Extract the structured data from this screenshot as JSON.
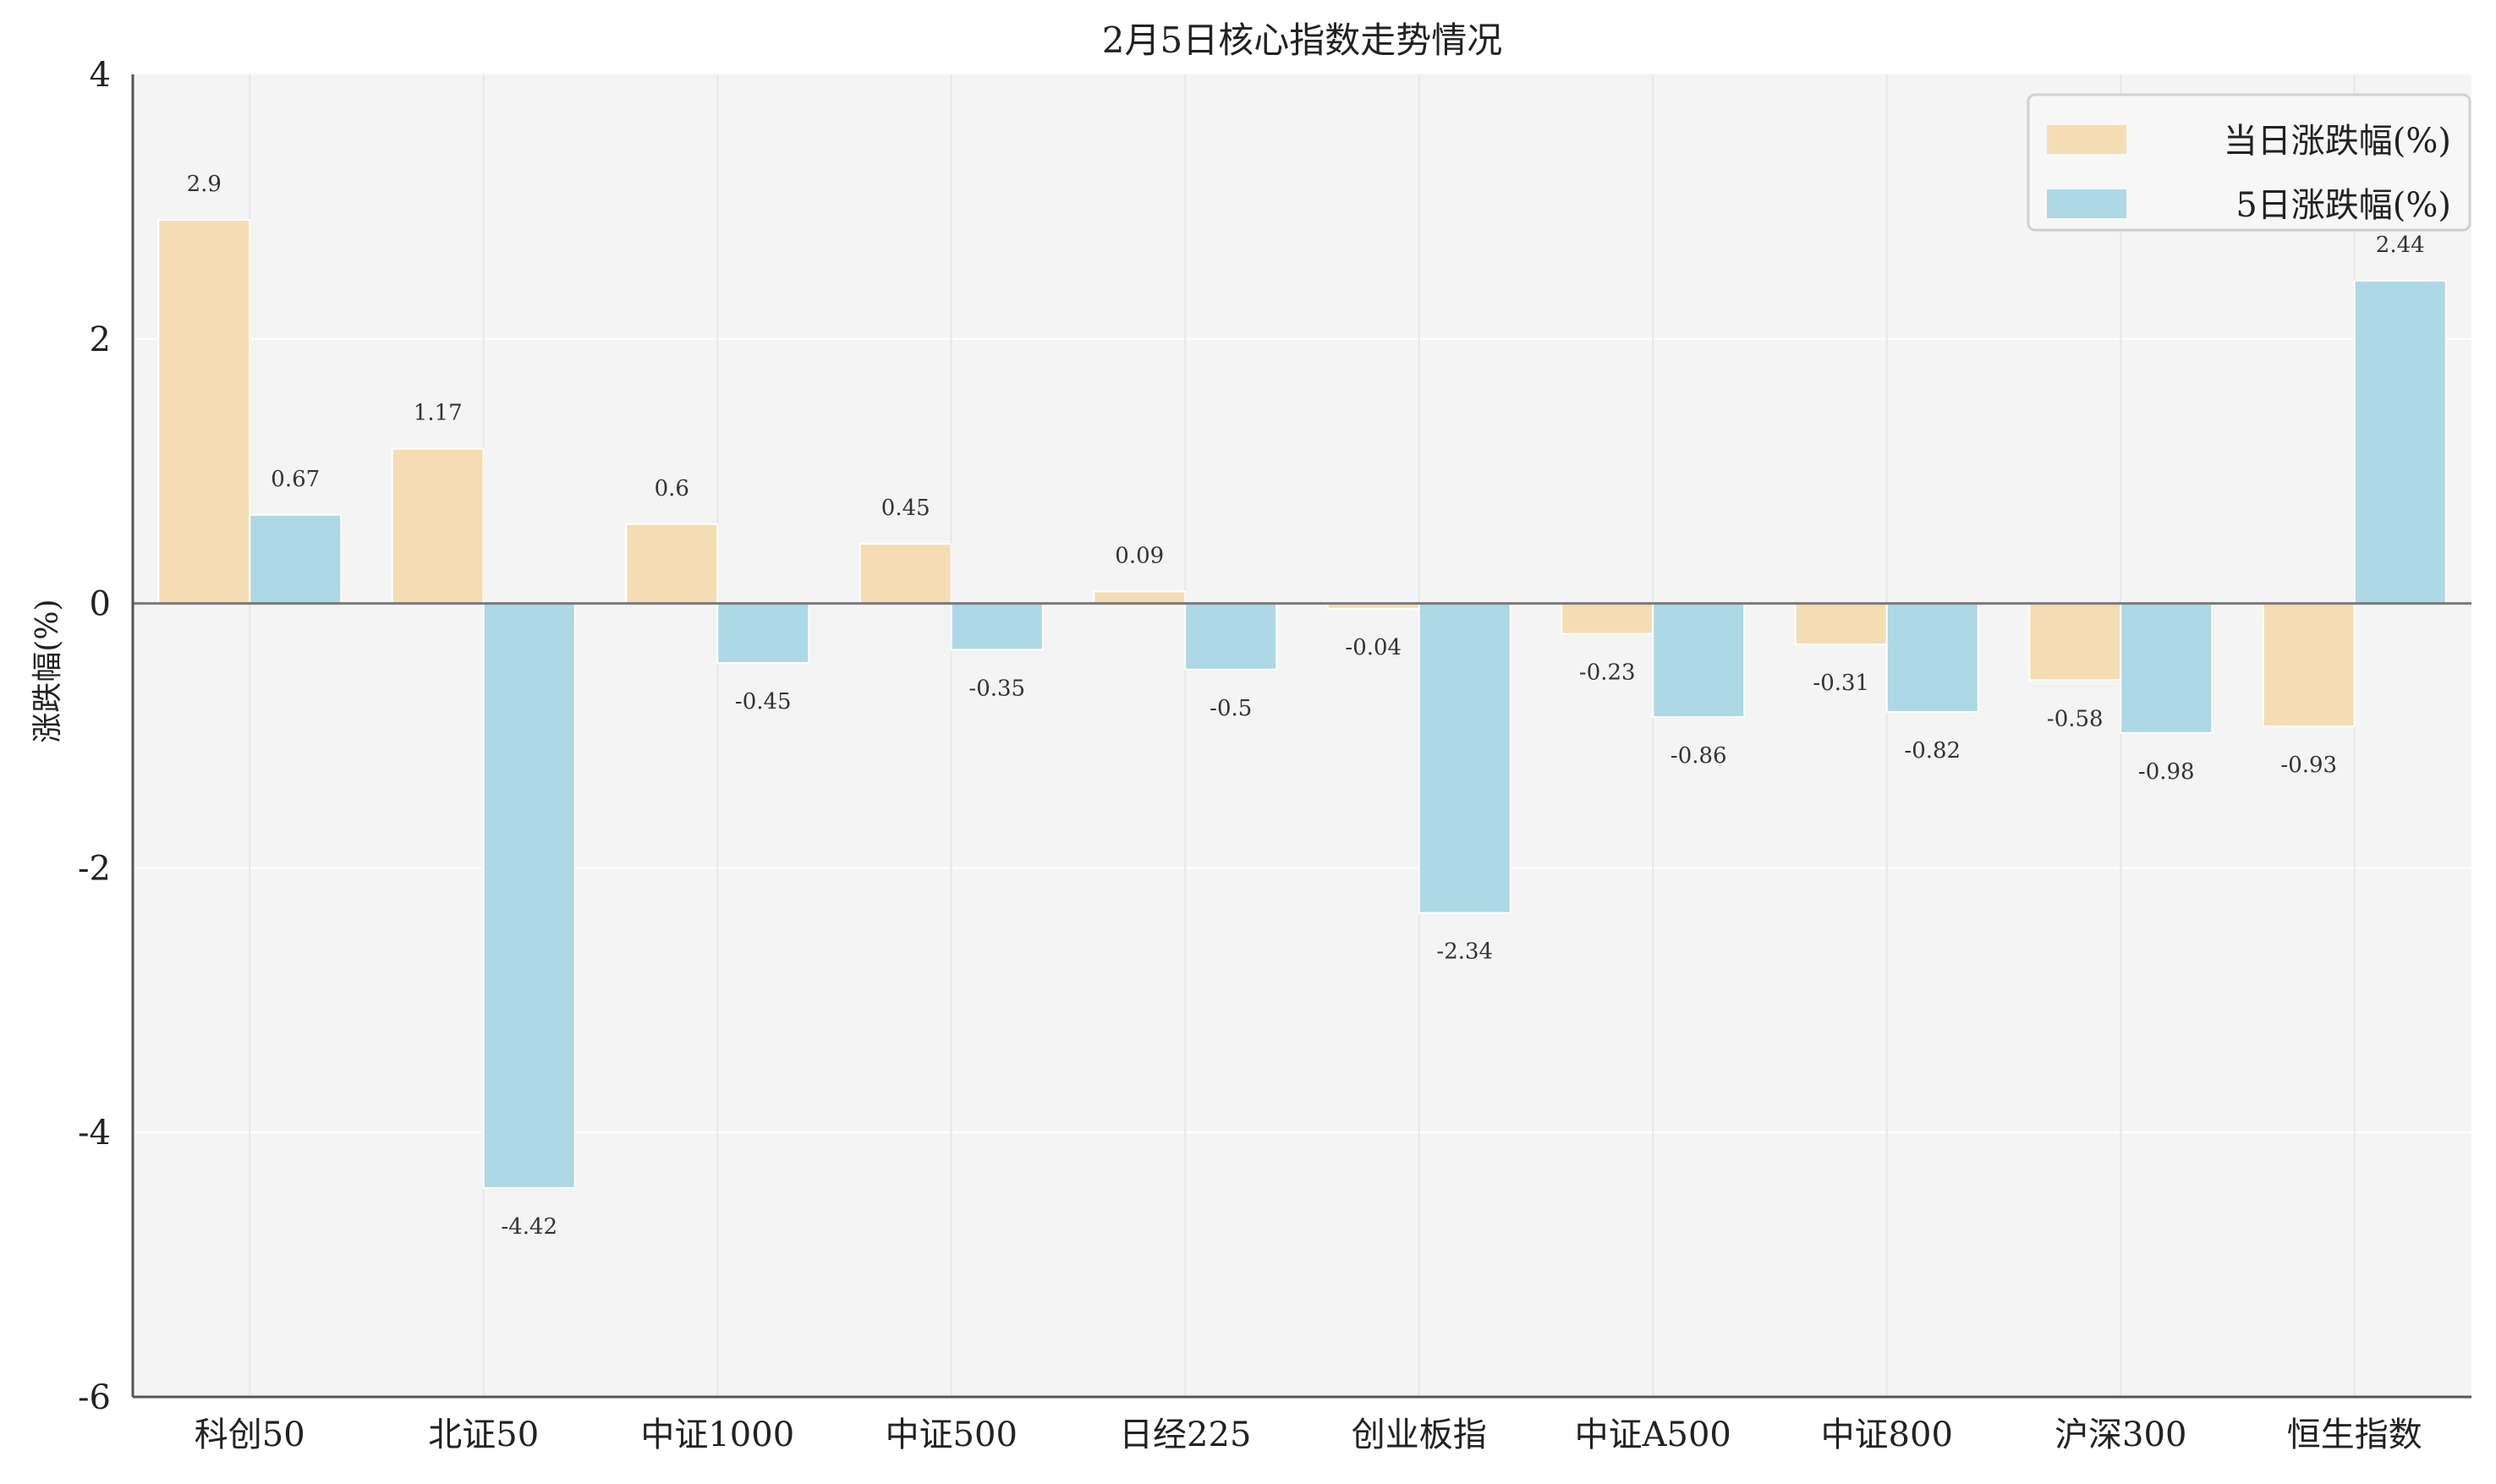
{
  "chart_data": {
    "type": "bar",
    "title": "2月5日核心指数走势情况",
    "xlabel": "",
    "ylabel": "涨跌幅(%)",
    "ylim": [
      -6,
      4
    ],
    "yticks": [
      -6,
      -4,
      -2,
      0,
      2,
      4
    ],
    "grid": true,
    "legend_position": "top-right",
    "categories": [
      "科创50",
      "北证50",
      "中证1000",
      "中证500",
      "日经225",
      "创业板指",
      "中证A500",
      "中证800",
      "沪深300",
      "恒生指数"
    ],
    "series": [
      {
        "name": "当日涨跌幅(%)",
        "color": "#f5ddb3",
        "values": [
          2.9,
          1.17,
          0.6,
          0.45,
          0.09,
          -0.04,
          -0.23,
          -0.31,
          -0.58,
          -0.93
        ]
      },
      {
        "name": "5日涨跌幅(%)",
        "color": "#add8e6",
        "values": [
          0.67,
          -4.42,
          -0.45,
          -0.35,
          -0.5,
          -2.34,
          -0.86,
          -0.82,
          -0.98,
          2.44
        ]
      }
    ]
  }
}
